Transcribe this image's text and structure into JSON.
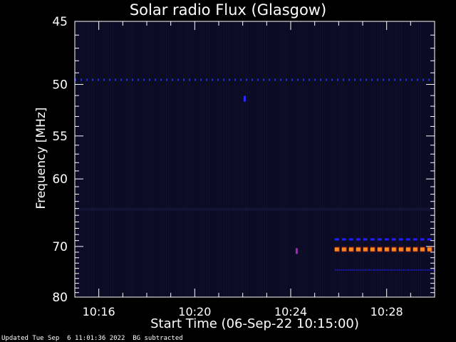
{
  "chart_data": {
    "type": "heatmap",
    "title": "Solar radio Flux (Glasgow)",
    "xlabel": "Start Time (06-Sep-22 10:15:00)",
    "ylabel": "Frequency [MHz]",
    "y_ticks": [
      45,
      50,
      55,
      60,
      70,
      80
    ],
    "y_tick_labels": [
      "45",
      "50",
      "55",
      "60",
      "70",
      "80"
    ],
    "ylim": [
      45,
      80
    ],
    "y_scale": "reciprocal",
    "x_ticks": [
      "10:16",
      "10:20",
      "10:24",
      "10:28"
    ],
    "x_range": [
      "10:15:00",
      "10:30:00"
    ],
    "background_color": "#0b0b26",
    "features": [
      {
        "kind": "dashed-line",
        "freq_mhz": 49.6,
        "from": "10:15:00",
        "to": "10:30:00",
        "color": "#2a2af0",
        "intensity": "medium"
      },
      {
        "kind": "dot",
        "freq_mhz": 51.3,
        "time": "10:22:05",
        "color": "#2a2aff",
        "intensity": "medium"
      },
      {
        "kind": "dashed-line",
        "freq_mhz": 68.8,
        "from": "10:25:50",
        "to": "10:30:00",
        "color": "#1f1fff",
        "intensity": "medium"
      },
      {
        "kind": "dashed-line",
        "freq_mhz": 70.5,
        "from": "10:25:50",
        "to": "10:30:00",
        "color": "#ff8a1f",
        "intensity": "high"
      },
      {
        "kind": "dashed-line",
        "freq_mhz": 74.3,
        "from": "10:25:50",
        "to": "10:30:00",
        "color": "#1a1ab0",
        "intensity": "low"
      },
      {
        "kind": "dot",
        "freq_mhz": 70.8,
        "time": "10:24:15",
        "color": "#b01fc0",
        "intensity": "medium"
      }
    ]
  },
  "footer": {
    "updated": "Updated Tue Sep  6 11:01:36 2022",
    "bg_note": "BG subtracted"
  }
}
